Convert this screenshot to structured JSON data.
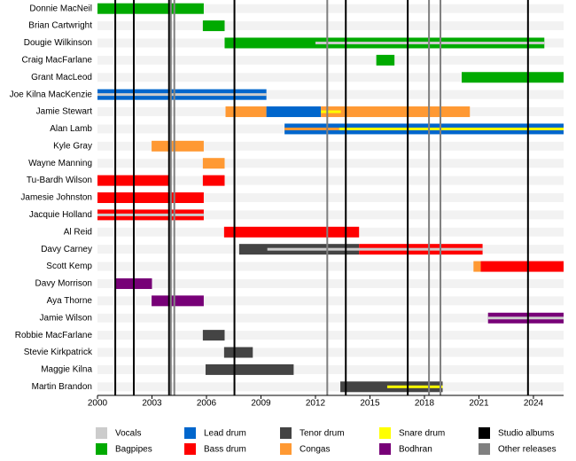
{
  "chart_data": {
    "type": "timeline",
    "xlim": [
      2000,
      2025.66
    ],
    "xticks": [
      2000,
      2003,
      2006,
      2009,
      2012,
      2015,
      2018,
      2021,
      2024
    ],
    "series": [
      {
        "name": "Vocals",
        "color": "#cccccc"
      },
      {
        "name": "Bagpipes",
        "color": "#00aa00"
      },
      {
        "name": "Lead drum",
        "color": "#0066cc"
      },
      {
        "name": "Bass drum",
        "color": "#ff0000"
      },
      {
        "name": "Tenor drum",
        "color": "#444444"
      },
      {
        "name": "Congas",
        "color": "#ff9933"
      },
      {
        "name": "Snare drum",
        "color": "#ffff00"
      },
      {
        "name": "Bodhran",
        "color": "#770077"
      }
    ],
    "markers": [
      {
        "name": "Studio albums",
        "color": "#000000",
        "x": [
          2000.98,
          2002.0,
          2003.94,
          2007.54,
          2013.67,
          2017.08,
          2023.7
        ]
      },
      {
        "name": "Other releases",
        "color": "#808080",
        "x": [
          2004.04,
          2004.23,
          2012.65,
          2018.25,
          2018.88
        ]
      }
    ],
    "members": [
      {
        "name": "Donnie MacNeil",
        "bars": [
          {
            "role": "Bagpipes",
            "start": 2000,
            "end": 2005.85
          }
        ],
        "stripes": []
      },
      {
        "name": "Brian Cartwright",
        "bars": [
          {
            "role": "Bagpipes",
            "start": 2005.8,
            "end": 2007.0
          }
        ],
        "stripes": []
      },
      {
        "name": "Dougie Wilkinson",
        "bars": [
          {
            "role": "Bagpipes",
            "start": 2007.0,
            "end": 2024.6
          }
        ],
        "stripes": [
          {
            "role": "Vocals",
            "start": 2012.0,
            "end": 2024.6
          }
        ]
      },
      {
        "name": "Craig MacFarlane",
        "bars": [
          {
            "role": "Bagpipes",
            "start": 2015.35,
            "end": 2016.35
          }
        ],
        "stripes": []
      },
      {
        "name": "Grant MacLeod",
        "bars": [
          {
            "role": "Bagpipes",
            "start": 2020.05,
            "end": 2025.66
          }
        ],
        "stripes": []
      },
      {
        "name": "Joe Kilna MacKenzie",
        "bars": [
          {
            "role": "Lead drum",
            "start": 2000,
            "end": 2009.3
          }
        ],
        "stripes": [
          {
            "role": "Vocals",
            "start": 2000,
            "end": 2009.3
          }
        ]
      },
      {
        "name": "Jamie Stewart",
        "bars": [
          {
            "role": "Congas",
            "start": 2007.05,
            "end": 2009.3
          },
          {
            "role": "Lead drum",
            "start": 2009.3,
            "end": 2012.3
          },
          {
            "role": "Congas",
            "start": 2012.3,
            "end": 2020.5
          }
        ],
        "stripes": [
          {
            "role": "Snare drum",
            "start": 2012.3,
            "end": 2013.4
          }
        ]
      },
      {
        "name": "Alan Lamb",
        "bars": [
          {
            "role": "Lead drum",
            "start": 2010.3,
            "end": 2025.66
          }
        ],
        "stripes": [
          {
            "role": "Congas",
            "start": 2010.3,
            "end": 2013.3
          },
          {
            "role": "Snare drum",
            "start": 2013.3,
            "end": 2025.66
          }
        ]
      },
      {
        "name": "Kyle Gray",
        "bars": [
          {
            "role": "Congas",
            "start": 2002.98,
            "end": 2005.85
          }
        ],
        "stripes": []
      },
      {
        "name": "Wayne Manning",
        "bars": [
          {
            "role": "Congas",
            "start": 2005.8,
            "end": 2007.0
          }
        ],
        "stripes": []
      },
      {
        "name": "Tu-Bardh Wilson",
        "bars": [
          {
            "role": "Bass drum",
            "start": 2000,
            "end": 2003.95
          },
          {
            "role": "Bass drum",
            "start": 2005.8,
            "end": 2007.0
          }
        ],
        "stripes": []
      },
      {
        "name": "Jamesie Johnston",
        "bars": [
          {
            "role": "Bass drum",
            "start": 2000,
            "end": 2005.85
          }
        ],
        "stripes": []
      },
      {
        "name": "Jacquie Holland",
        "bars": [
          {
            "role": "Bass drum",
            "start": 2000,
            "end": 2005.85
          }
        ],
        "stripes": [
          {
            "role": "Vocals",
            "start": 2000,
            "end": 2005.85
          }
        ]
      },
      {
        "name": "Al Reid",
        "bars": [
          {
            "role": "Bass drum",
            "start": 2006.97,
            "end": 2014.4
          }
        ],
        "stripes": []
      },
      {
        "name": "Davy Carney",
        "bars": [
          {
            "role": "Tenor drum",
            "start": 2007.8,
            "end": 2014.4
          },
          {
            "role": "Bass drum",
            "start": 2014.4,
            "end": 2021.2
          }
        ],
        "stripes": [
          {
            "role": "Vocals",
            "start": 2009.35,
            "end": 2021.2
          }
        ]
      },
      {
        "name": "Scott Kemp",
        "bars": [
          {
            "role": "Congas",
            "start": 2020.7,
            "end": 2021.1
          },
          {
            "role": "Bass drum",
            "start": 2021.1,
            "end": 2025.66
          }
        ],
        "stripes": []
      },
      {
        "name": "Davy Morrison",
        "bars": [
          {
            "role": "Bodhran",
            "start": 2000.98,
            "end": 2003.0
          }
        ],
        "stripes": []
      },
      {
        "name": "Aya Thorne",
        "bars": [
          {
            "role": "Bodhran",
            "start": 2002.98,
            "end": 2005.85
          }
        ],
        "stripes": []
      },
      {
        "name": "Jamie Wilson",
        "bars": [
          {
            "role": "Bodhran",
            "start": 2021.5,
            "end": 2025.66
          }
        ],
        "stripes": [
          {
            "role": "Vocals",
            "start": 2021.5,
            "end": 2025.66
          }
        ]
      },
      {
        "name": "Robbie MacFarlane",
        "bars": [
          {
            "role": "Tenor drum",
            "start": 2005.8,
            "end": 2007.0
          }
        ],
        "stripes": []
      },
      {
        "name": "Stevie Kirkpatrick",
        "bars": [
          {
            "role": "Tenor drum",
            "start": 2006.97,
            "end": 2008.55
          }
        ],
        "stripes": []
      },
      {
        "name": "Maggie Kilna",
        "bars": [
          {
            "role": "Tenor drum",
            "start": 2005.95,
            "end": 2010.8
          }
        ],
        "stripes": []
      },
      {
        "name": "Martin Brandon",
        "bars": [
          {
            "role": "Tenor drum",
            "start": 2013.37,
            "end": 2019.0
          }
        ],
        "stripes": [
          {
            "role": "Snare drum",
            "start": 2015.95,
            "end": 2019.0
          }
        ]
      }
    ]
  }
}
